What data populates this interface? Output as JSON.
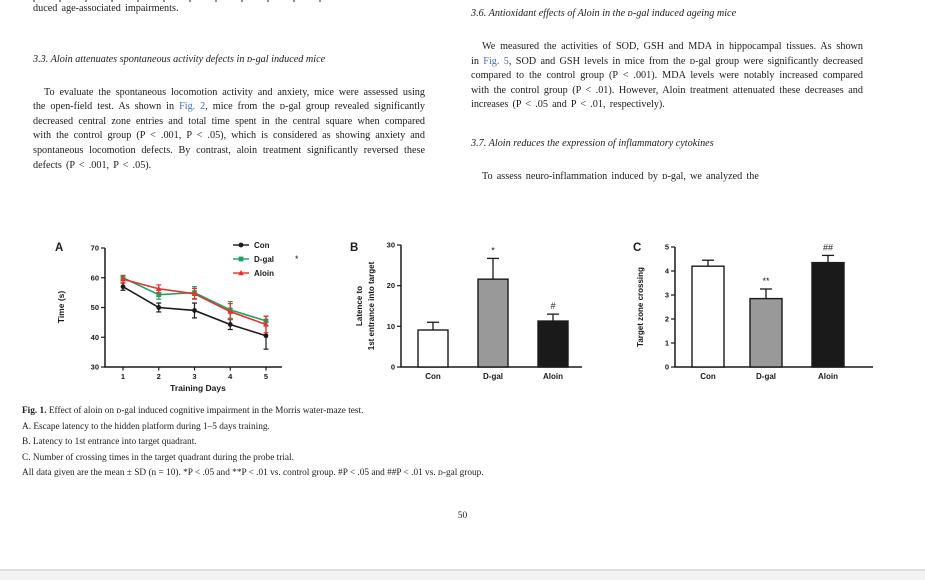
{
  "page_number": "50",
  "colors": {
    "text": "#1b1b1b",
    "link_blue": "#3f74ae",
    "series_black": "#1a1a1a",
    "series_green": "#1fa263",
    "series_red": "#e8312b",
    "bar_gray": "#999999",
    "bar_white": "#ffffff"
  },
  "left_column": {
    "continuation": "duced age-associated impairments.",
    "heading": "3.3. Aloin attenuates spontaneous activity defects in ᴅ-gal induced mice",
    "paragraph": {
      "before": "To evaluate the spontaneous locomotion activity and anxiety, mice were assessed using the open-field test. As shown in ",
      "link": "Fig. 2",
      "after": ", mice from the ᴅ-gal group revealed significantly decreased central zone entries and total time spent in the central square when compared with the control group (P < .001, P < .05), which is considered as showing anxiety and spontaneous locomotion defects. By contrast, aloin treatment significantly reversed these defects (P < .001, P < .05)."
    }
  },
  "right_column": {
    "heading_3_6": "3.6. Antioxidant effects of Aloin in the ᴅ-gal induced ageing mice",
    "paragraph_3_6": {
      "before": "We measured the activities of SOD, GSH and MDA in hippocampal tissues. As shown in ",
      "link": "Fig. 5",
      "after": ", SOD and GSH levels in mice from the ᴅ-gal group were significantly decreased compared to the control group (P < .001). MDA levels were notably increased compared with the control group (P < .01). However, Aloin treatment attenuated these decreases and increases (P < .05 and P < .01, respectively)."
    },
    "heading_3_7": "3.7. Aloin reduces the expression of inflammatory cytokines",
    "paragraph_3_7": "To assess neuro-inflammation induced by ᴅ-gal, we analyzed the"
  },
  "caption": {
    "label": "Fig. 1.",
    "title": " Effect of aloin on ᴅ-gal induced cognitive impairment in the Morris water-maze test.",
    "line_a": "A. Escape latency to the hidden platform during 1–5 days training.",
    "line_b": "B. Latency to 1st entrance into target quadrant.",
    "line_c": "C. Number of crossing times in the target quadrant during the probe trial.",
    "stats": "All data given are the mean ± SD (n = 10). *P < .05 and **P < .01 vs. control group. #P < .05 and ##P < .01 vs. ᴅ-gal group."
  },
  "chart_data": [
    {
      "panel": "A",
      "type": "line",
      "x": [
        1,
        2,
        3,
        4,
        5
      ],
      "xlabel": "Training Days",
      "ylabel": "Time (s)",
      "ylim": [
        30,
        70
      ],
      "yticks": [
        30,
        40,
        50,
        60,
        70
      ],
      "grid": false,
      "legend_position": "top-right",
      "series": [
        {
          "name": "Con",
          "color": "#1a1a1a",
          "marker": "circle",
          "values": [
            57.0,
            50.0,
            49.0,
            44.3,
            40.5
          ],
          "errors": [
            1.2,
            1.5,
            2.5,
            1.7,
            4.5
          ]
        },
        {
          "name": "D-gal",
          "color": "#1fa263",
          "marker": "square",
          "values": [
            60.0,
            54.3,
            55.0,
            49.2,
            45.5
          ],
          "errors": [
            0.8,
            1.5,
            2.0,
            2.8,
            1.5
          ],
          "legend_note": "*"
        },
        {
          "name": "Aloin",
          "color": "#e8312b",
          "marker": "triangle",
          "values": [
            59.5,
            56.3,
            54.6,
            48.6,
            44.3
          ],
          "errors": [
            1.2,
            1.3,
            1.8,
            2.7,
            2.8
          ]
        }
      ]
    },
    {
      "panel": "B",
      "type": "bar",
      "categories": [
        "Con",
        "D-gal",
        "Aloin"
      ],
      "values": [
        9.1,
        21.6,
        11.3
      ],
      "errors": [
        1.9,
        5.1,
        1.7
      ],
      "annotations": [
        "",
        "*",
        "#"
      ],
      "bar_colors": [
        "#ffffff",
        "#999999",
        "#1a1a1a"
      ],
      "ylabel_lines": [
        "Latence to",
        "1st entrance into target"
      ],
      "ylim": [
        0,
        30
      ],
      "yticks": [
        0,
        10,
        20,
        30
      ],
      "grid": false
    },
    {
      "panel": "C",
      "type": "bar",
      "categories": [
        "Con",
        "D-gal",
        "Aloin"
      ],
      "values": [
        4.2,
        2.85,
        4.35
      ],
      "errors": [
        0.25,
        0.4,
        0.3
      ],
      "annotations": [
        "",
        "**",
        "##"
      ],
      "bar_colors": [
        "#ffffff",
        "#999999",
        "#1a1a1a"
      ],
      "ylabel_lines": [
        "Target zone crossing"
      ],
      "ylim": [
        0,
        5
      ],
      "yticks": [
        0,
        1,
        2,
        3,
        4,
        5
      ],
      "grid": false
    }
  ]
}
